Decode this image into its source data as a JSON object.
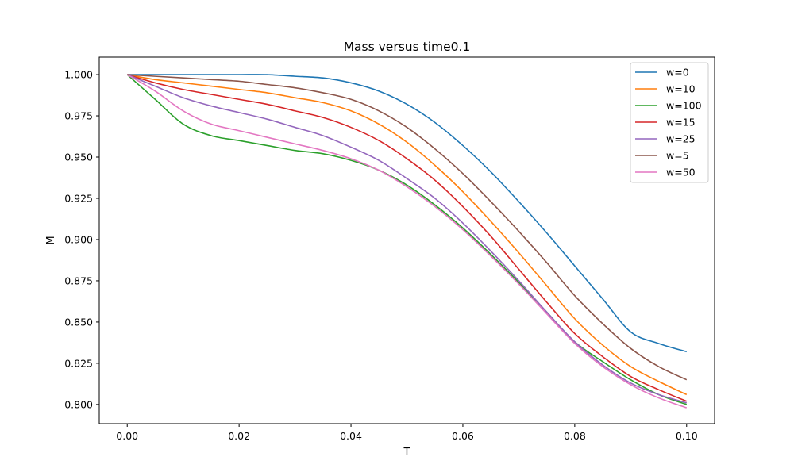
{
  "chart_data": {
    "type": "line",
    "title": "Mass versus time0.1",
    "xlabel": "T",
    "ylabel": "M",
    "xlim": [
      -0.005,
      0.105
    ],
    "ylim": [
      0.7884,
      1.0106
    ],
    "xticks": [
      0.0,
      0.02,
      0.04,
      0.06,
      0.08,
      0.1
    ],
    "xtick_labels": [
      "0.00",
      "0.02",
      "0.04",
      "0.06",
      "0.08",
      "0.10"
    ],
    "yticks": [
      0.8,
      0.825,
      0.85,
      0.875,
      0.9,
      0.925,
      0.95,
      0.975,
      1.0
    ],
    "ytick_labels": [
      "0.800",
      "0.825",
      "0.850",
      "0.875",
      "0.900",
      "0.925",
      "0.950",
      "0.975",
      "1.000"
    ],
    "grid": false,
    "legend_position": "top-right",
    "x": [
      0.0,
      0.005,
      0.01,
      0.015,
      0.02,
      0.025,
      0.03,
      0.035,
      0.04,
      0.045,
      0.05,
      0.055,
      0.06,
      0.065,
      0.07,
      0.075,
      0.08,
      0.085,
      0.09,
      0.095,
      0.1
    ],
    "series": [
      {
        "name": "w=0",
        "color": "#1f77b4",
        "values": [
          1.0,
          1.0,
          1.0,
          1.0,
          1.0,
          1.0,
          0.999,
          0.998,
          0.995,
          0.99,
          0.982,
          0.971,
          0.957,
          0.941,
          0.923,
          0.904,
          0.884,
          0.864,
          0.844,
          0.837,
          0.832
        ]
      },
      {
        "name": "w=10",
        "color": "#ff7f0e",
        "values": [
          1.0,
          0.997,
          0.995,
          0.993,
          0.991,
          0.989,
          0.986,
          0.983,
          0.978,
          0.97,
          0.959,
          0.945,
          0.929,
          0.911,
          0.892,
          0.872,
          0.852,
          0.836,
          0.823,
          0.814,
          0.806
        ]
      },
      {
        "name": "w=100",
        "color": "#2ca02c",
        "values": [
          1.0,
          0.985,
          0.97,
          0.963,
          0.96,
          0.957,
          0.954,
          0.952,
          0.948,
          0.942,
          0.933,
          0.921,
          0.907,
          0.891,
          0.874,
          0.856,
          0.838,
          0.826,
          0.815,
          0.806,
          0.8
        ]
      },
      {
        "name": "w=15",
        "color": "#d62728",
        "values": [
          1.0,
          0.995,
          0.991,
          0.988,
          0.985,
          0.982,
          0.978,
          0.974,
          0.968,
          0.96,
          0.949,
          0.936,
          0.92,
          0.902,
          0.882,
          0.862,
          0.843,
          0.829,
          0.817,
          0.809,
          0.802
        ]
      },
      {
        "name": "w=25",
        "color": "#9467bd",
        "values": [
          1.0,
          0.993,
          0.986,
          0.981,
          0.977,
          0.973,
          0.968,
          0.963,
          0.956,
          0.948,
          0.937,
          0.925,
          0.91,
          0.893,
          0.875,
          0.856,
          0.838,
          0.824,
          0.813,
          0.806,
          0.801
        ]
      },
      {
        "name": "w=5",
        "color": "#8c564b",
        "values": [
          1.0,
          0.999,
          0.998,
          0.997,
          0.996,
          0.994,
          0.992,
          0.989,
          0.985,
          0.978,
          0.968,
          0.955,
          0.94,
          0.923,
          0.905,
          0.886,
          0.866,
          0.849,
          0.834,
          0.823,
          0.815
        ]
      },
      {
        "name": "w=50",
        "color": "#e377c2",
        "values": [
          1.0,
          0.99,
          0.978,
          0.97,
          0.966,
          0.962,
          0.958,
          0.954,
          0.949,
          0.942,
          0.932,
          0.92,
          0.906,
          0.89,
          0.873,
          0.855,
          0.837,
          0.823,
          0.812,
          0.804,
          0.798
        ]
      }
    ]
  }
}
